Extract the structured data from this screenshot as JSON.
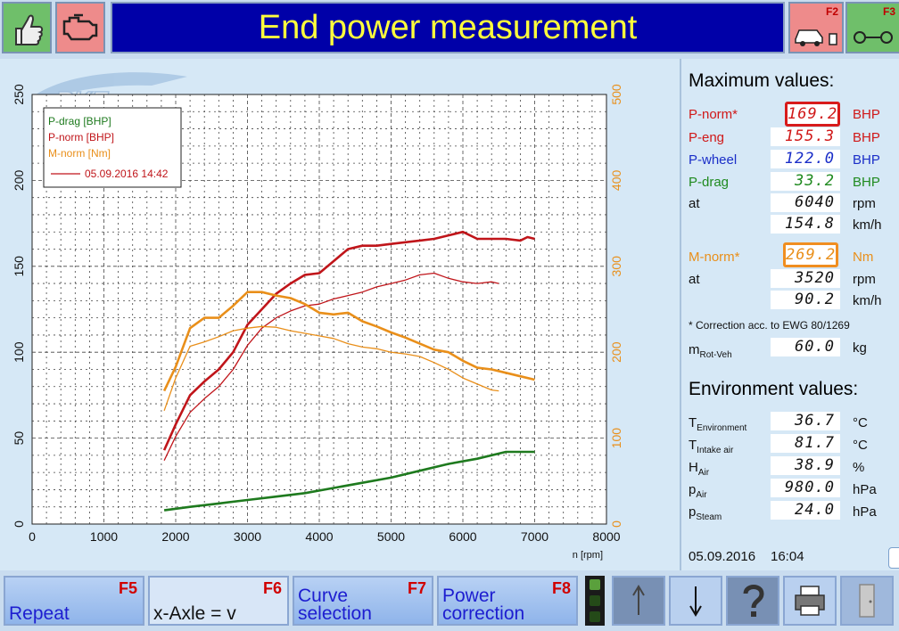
{
  "header": {
    "title": "End power measurement",
    "f2_key": "F2",
    "f3_key": "F3",
    "logo_text": "RKE"
  },
  "chart_data": {
    "type": "line",
    "x_ticks": [
      "0",
      "1000",
      "2000",
      "3000",
      "4000",
      "5000",
      "6000",
      "7000",
      "8000"
    ],
    "xlabel": "n [rpm]",
    "xlim": [
      0,
      8000
    ],
    "y_left_ticks": [
      "0",
      "50",
      "100",
      "150",
      "200",
      "250"
    ],
    "ylim_left": [
      0,
      250
    ],
    "y_right_ticks": [
      "0",
      "100",
      "200",
      "300",
      "400",
      "500"
    ],
    "ylim_right": [
      0,
      500
    ],
    "grid": true,
    "legend": {
      "entries": [
        "P-drag [BHP]",
        "P-norm [BHP]",
        "M-norm [Nm]"
      ],
      "date_label": "05.09.2016 14:42",
      "placement": "top-left"
    },
    "series": [
      {
        "name": "P-norm [BHP]",
        "axis": "left",
        "color": "#c0151a",
        "style": "thick",
        "x": [
          1840,
          2000,
          2200,
          2400,
          2600,
          2800,
          3000,
          3200,
          3400,
          3600,
          3800,
          4000,
          4200,
          4400,
          4600,
          4800,
          5000,
          5200,
          5400,
          5600,
          5800,
          6000,
          6200,
          6400,
          6600,
          6800,
          6900,
          7000
        ],
        "y": [
          43,
          58,
          75,
          83,
          90,
          100,
          116,
          125,
          134,
          140,
          145,
          146,
          153,
          160,
          162,
          162,
          163,
          164,
          165,
          166,
          168,
          170,
          166,
          166,
          166,
          165,
          167,
          166
        ]
      },
      {
        "name": "P-norm [BHP]",
        "axis": "left",
        "color": "#c0151a",
        "style": "thin",
        "x": [
          1840,
          2000,
          2200,
          2400,
          2600,
          2800,
          3000,
          3200,
          3400,
          3600,
          3800,
          4000,
          4200,
          4400,
          4600,
          4800,
          5000,
          5200,
          5400,
          5600,
          5800,
          6000,
          6200,
          6400,
          6500
        ],
        "y": [
          37,
          51,
          65,
          73,
          80,
          90,
          104,
          114,
          120,
          124,
          127,
          128,
          131,
          133,
          135,
          138,
          140,
          142,
          145,
          146,
          143,
          141,
          140,
          141,
          140
        ]
      },
      {
        "name": "M-norm [Nm]",
        "axis": "right",
        "color": "#e98f1a",
        "style": "thick",
        "x": [
          1840,
          2000,
          2200,
          2400,
          2600,
          2800,
          3000,
          3200,
          3400,
          3600,
          3800,
          4000,
          4200,
          4400,
          4600,
          4800,
          5000,
          5200,
          5400,
          5600,
          5800,
          6000,
          6200,
          6400,
          6600,
          6800,
          7000
        ],
        "y": [
          155,
          183,
          228,
          240,
          240,
          254,
          270,
          270,
          266,
          263,
          256,
          246,
          244,
          246,
          236,
          230,
          223,
          217,
          210,
          203,
          200,
          190,
          182,
          180,
          176,
          172,
          168
        ]
      },
      {
        "name": "M-norm [Nm]",
        "axis": "right",
        "color": "#e98f1a",
        "style": "thin",
        "x": [
          1840,
          2000,
          2200,
          2400,
          2600,
          2800,
          3000,
          3200,
          3400,
          3600,
          3800,
          4000,
          4200,
          4400,
          4600,
          4800,
          5000,
          5200,
          5400,
          5600,
          5800,
          6000,
          6200,
          6400,
          6500
        ],
        "y": [
          132,
          170,
          207,
          212,
          218,
          225,
          228,
          230,
          229,
          225,
          222,
          219,
          216,
          210,
          206,
          204,
          200,
          198,
          195,
          188,
          180,
          170,
          163,
          156,
          155
        ]
      },
      {
        "name": "P-drag [BHP]",
        "axis": "left",
        "color": "#1e7a1e",
        "style": "thick",
        "x": [
          1840,
          2200,
          2600,
          3000,
          3400,
          3800,
          4200,
          4600,
          5000,
          5400,
          5800,
          6200,
          6600,
          7000
        ],
        "y": [
          8,
          10,
          12,
          14,
          16,
          18,
          21,
          24,
          27,
          31,
          35,
          38,
          42,
          42
        ]
      }
    ]
  },
  "panel": {
    "max_heading": "Maximum values:",
    "rows": [
      {
        "label": "P-norm*",
        "value": "169.2",
        "unit": "BHP"
      },
      {
        "label": "P-eng",
        "value": "155.3",
        "unit": "BHP"
      },
      {
        "label": "P-wheel",
        "value": "122.0",
        "unit": "BHP"
      },
      {
        "label": "P-drag",
        "value": "33.2",
        "unit": "BHP"
      },
      {
        "label": "at",
        "value": "6040",
        "unit": "rpm"
      },
      {
        "label": "",
        "value": "154.8",
        "unit": "km/h"
      },
      {
        "label": "M-norm*",
        "value": "269.2",
        "unit": "Nm"
      },
      {
        "label": "at",
        "value": "3520",
        "unit": "rpm"
      },
      {
        "label": "",
        "value": "90.2",
        "unit": "km/h"
      }
    ],
    "correction_note": "* Correction acc. to EWG 80/1269",
    "mrot": {
      "main": "m",
      "sub": "Rot-Veh",
      "value": "60.0",
      "unit": "kg"
    },
    "env_heading": "Environment values:",
    "env_rows": [
      {
        "main": "T",
        "sub": "Environment",
        "value": "36.7",
        "unit": "°C"
      },
      {
        "main": "T",
        "sub": "Intake air",
        "value": "81.7",
        "unit": "°C"
      },
      {
        "main": "H",
        "sub": "Air",
        "value": "38.9",
        "unit": "%"
      },
      {
        "main": "p",
        "sub": "Air",
        "value": "980.0",
        "unit": "hPa"
      },
      {
        "main": "p",
        "sub": "Steam",
        "value": "24.0",
        "unit": "hPa"
      }
    ],
    "date": "05.09.2016",
    "time": "16:04"
  },
  "footer": {
    "f5": {
      "label": "Repeat",
      "key": "F5"
    },
    "f6": {
      "label": "x-Axle = v",
      "key": "F6"
    },
    "f7": {
      "label1": "Curve",
      "label2": "selection",
      "key": "F7"
    },
    "f8": {
      "label1": "Power",
      "label2": "correction",
      "key": "F8"
    }
  },
  "colors": {
    "title_bg": "#0000a8",
    "title_fg": "#ffff3c",
    "p_norm": "#c0151a",
    "m_norm": "#e98f1a",
    "p_drag": "#1e7a1e",
    "p_wheel": "#1a2ec8"
  }
}
